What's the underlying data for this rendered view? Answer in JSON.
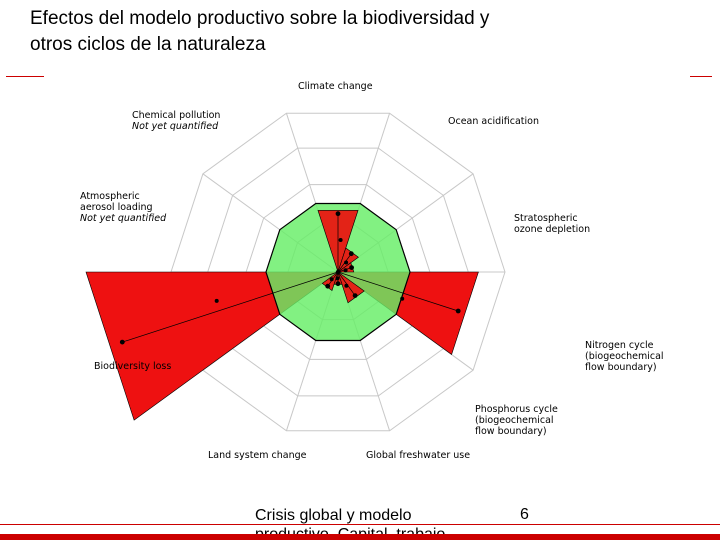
{
  "slide": {
    "title_line1": "Efectos del modelo productivo sobre la biodiversidad y",
    "title_line2": "otros ciclos de la naturaleza",
    "footer_line1": "Crisis global y modelo",
    "footer_line2": "productivo. Capital, trabajo",
    "page_number": "6"
  },
  "colors": {
    "accent": "#cc0000",
    "boundary_exceeded": "#ee1111",
    "safe_zone": "#66ee66"
  },
  "diagram": {
    "type": "radar-boundaries",
    "labels": {
      "climate": "Climate change",
      "ocean": "Ocean acidification",
      "ozone_1": "Stratospheric",
      "ozone_2": "ozone depletion",
      "nitrogen_1": "Nitrogen cycle",
      "nitrogen_2": "(biogeochemical",
      "nitrogen_3": "flow boundary)",
      "phosphorus_1": "Phosphorus cycle",
      "phosphorus_2": "(biogeochemical",
      "phosphorus_3": "flow boundary)",
      "freshwater": "Global freshwater use",
      "land": "Land system change",
      "biodiversity": "Biodiversity loss",
      "aerosol_1": "Atmospheric",
      "aerosol_2": "aerosol loading",
      "aerosol_3": "Not yet quantified",
      "chemical_1": "Chemical pollution",
      "chemical_2": "Not yet quantified"
    },
    "sectors": [
      {
        "name": "climate change",
        "level": 0.9
      },
      {
        "name": "ocean acidification",
        "level": 0.35
      },
      {
        "name": "stratospheric ozone depletion",
        "level": 0.22
      },
      {
        "name": "nitrogen cycle",
        "level": 1.95
      },
      {
        "name": "phosphorus cycle",
        "level": 0.45
      },
      {
        "name": "global freshwater use",
        "level": 0.18
      },
      {
        "name": "land system change",
        "level": 0.27
      },
      {
        "name": "biodiversity loss",
        "level": 3.5
      },
      {
        "name": "atmospheric aerosol loading",
        "level": null
      },
      {
        "name": "chemical pollution",
        "level": null
      }
    ]
  }
}
